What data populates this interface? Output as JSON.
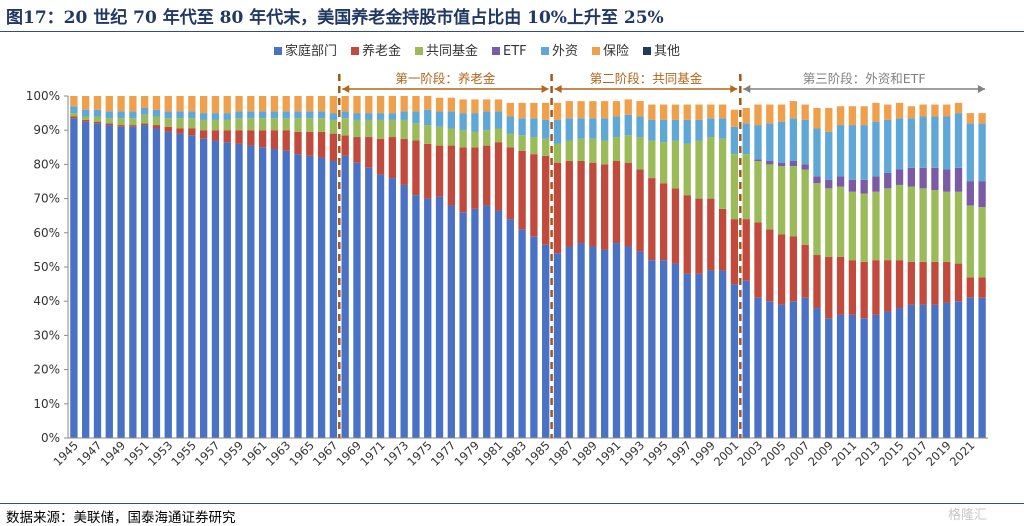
{
  "title": "图17：20 世纪 70 年代至 80 年代末，美国养老金持股市值占比由 10%上升至 25%",
  "source": "数据来源：美联储，国泰海通证券研究",
  "watermark": "格隆汇",
  "chart_data": {
    "type": "bar",
    "stacked": true,
    "percent": true,
    "ylim": [
      0,
      100
    ],
    "yticks": [
      "0%",
      "10%",
      "20%",
      "30%",
      "40%",
      "50%",
      "60%",
      "70%",
      "80%",
      "90%",
      "100%"
    ],
    "grid": false,
    "legend_position": "top",
    "x": [
      1945,
      1946,
      1947,
      1948,
      1949,
      1950,
      1951,
      1952,
      1953,
      1954,
      1955,
      1956,
      1957,
      1958,
      1959,
      1960,
      1961,
      1962,
      1963,
      1964,
      1965,
      1966,
      1967,
      1968,
      1969,
      1970,
      1971,
      1972,
      1973,
      1974,
      1975,
      1976,
      1977,
      1978,
      1979,
      1980,
      1981,
      1982,
      1983,
      1984,
      1985,
      1986,
      1987,
      1988,
      1989,
      1990,
      1991,
      1992,
      1993,
      1994,
      1995,
      1996,
      1997,
      1998,
      1999,
      2000,
      2001,
      2002,
      2003,
      2004,
      2005,
      2006,
      2007,
      2008,
      2009,
      2010,
      2011,
      2012,
      2013,
      2014,
      2015,
      2016,
      2017,
      2018,
      2019,
      2020,
      2021,
      2022
    ],
    "xtick_labels": [
      "1945",
      "1947",
      "1949",
      "1951",
      "1953",
      "1955",
      "1957",
      "1959",
      "1961",
      "1963",
      "1965",
      "1967",
      "1969",
      "1971",
      "1973",
      "1975",
      "1977",
      "1979",
      "1981",
      "1983",
      "1985",
      "1987",
      "1989",
      "1991",
      "1993",
      "1995",
      "1997",
      "1999",
      "2001",
      "2003",
      "2005",
      "2007",
      "2009",
      "2011",
      "2013",
      "2015",
      "2017",
      "2019",
      "2021"
    ],
    "series": [
      {
        "name": "家庭部门",
        "color": "#4a72c4",
        "values": [
          93.5,
          92.5,
          92,
          91.5,
          91,
          91,
          91.5,
          90.5,
          89.5,
          89,
          88.5,
          87.5,
          87,
          86.5,
          86,
          85.5,
          85,
          84.5,
          84,
          83,
          82.5,
          82,
          81,
          82.5,
          80.5,
          79,
          77,
          76,
          74,
          71,
          70,
          70.5,
          68,
          66,
          67,
          68,
          66.5,
          64,
          61,
          59,
          56.5,
          54,
          56,
          57,
          56,
          55,
          57,
          56,
          54.5,
          52,
          52,
          51,
          48,
          48,
          49,
          49,
          45,
          46,
          41,
          40,
          39,
          40,
          41,
          38,
          35,
          36,
          36,
          35,
          36,
          37,
          38,
          39,
          39,
          39,
          39.5,
          40,
          41,
          41
        ]
      },
      {
        "name": "养老金",
        "color": "#c24a3c",
        "values": [
          0.5,
          0.5,
          0.5,
          0.5,
          0.5,
          0.5,
          0.5,
          1,
          1.5,
          1.5,
          2,
          2.5,
          3,
          3.5,
          4,
          4.5,
          5,
          5.5,
          6,
          6.5,
          7,
          7.5,
          8,
          6,
          7.5,
          9,
          10.5,
          12,
          13.5,
          16,
          16,
          15,
          17.5,
          19,
          18,
          17.5,
          20,
          21,
          23,
          24,
          26,
          26.5,
          25,
          24,
          24.5,
          25,
          24,
          24.5,
          24,
          24,
          22.5,
          22,
          23,
          22,
          21,
          18,
          19,
          18,
          22,
          21,
          20.5,
          19,
          15.5,
          15.5,
          18,
          17,
          16,
          16.5,
          16,
          15,
          14,
          12.5,
          12.5,
          12.5,
          12,
          11,
          6,
          6
        ]
      },
      {
        "name": "共同基金",
        "color": "#9bbb59",
        "values": [
          1,
          1,
          1.5,
          1.5,
          2,
          2,
          2.5,
          2.5,
          2.5,
          3,
          3,
          3,
          3,
          3,
          3.5,
          3.5,
          3.5,
          3.5,
          3.5,
          4,
          4,
          4,
          4,
          5,
          5,
          5,
          5.5,
          5,
          5.5,
          5,
          5.5,
          5.5,
          5,
          5,
          4.5,
          4.5,
          4,
          4,
          4.5,
          5,
          5,
          5.5,
          6,
          6.5,
          7,
          7,
          7,
          8,
          9.5,
          11,
          12,
          14,
          15,
          17,
          18,
          20.5,
          19,
          19,
          18,
          19,
          20,
          20.5,
          22,
          21,
          20,
          20.5,
          20,
          20,
          20,
          21,
          22,
          22,
          21.5,
          21,
          20.5,
          21,
          21,
          20.5
        ]
      },
      {
        "name": "ETF",
        "color": "#7b5aa6",
        "values": [
          0,
          0,
          0,
          0,
          0,
          0,
          0,
          0,
          0,
          0,
          0,
          0,
          0,
          0,
          0,
          0,
          0,
          0,
          0,
          0,
          0,
          0,
          0,
          0,
          0,
          0,
          0,
          0,
          0,
          0,
          0,
          0,
          0,
          0,
          0,
          0,
          0,
          0,
          0,
          0,
          0,
          0,
          0,
          0,
          0,
          0,
          0,
          0,
          0,
          0,
          0,
          0,
          0,
          0,
          0,
          0,
          0,
          0,
          0.5,
          1,
          1,
          1.5,
          1.5,
          2,
          2.5,
          3,
          3.5,
          4,
          4.5,
          4.5,
          4.5,
          5.5,
          6,
          6.5,
          6.5,
          7,
          7,
          7.5
        ]
      },
      {
        "name": "外资",
        "color": "#5fa7d6",
        "values": [
          2,
          2,
          2,
          2,
          2,
          2,
          2,
          2,
          2,
          2,
          2,
          2,
          2,
          2,
          2,
          2,
          2,
          2,
          2,
          2,
          2,
          2,
          2,
          2,
          2,
          2,
          2,
          2,
          2.5,
          3.5,
          4.5,
          4.5,
          5,
          5,
          5.5,
          5.5,
          5,
          5,
          5,
          5.5,
          5.5,
          7,
          6.5,
          6,
          6,
          6.5,
          6,
          6,
          6,
          6,
          6.5,
          6,
          7,
          6,
          5.5,
          6,
          8,
          9,
          10,
          11,
          12,
          12.5,
          13,
          14,
          14,
          15,
          16,
          16,
          16,
          15.5,
          15,
          14.5,
          15,
          15,
          15.5,
          16,
          17,
          17
        ]
      },
      {
        "name": "保险",
        "color": "#f0a04b",
        "values": [
          3,
          4,
          4,
          4.5,
          4.5,
          4.5,
          3.5,
          4,
          4.5,
          4.5,
          4.5,
          5,
          5,
          5,
          4.5,
          4.5,
          4.5,
          4.5,
          4.5,
          4.5,
          4.5,
          4.5,
          5,
          4.5,
          5,
          5,
          5,
          5,
          4.5,
          4.5,
          4,
          4,
          4,
          4,
          4,
          3.5,
          3.5,
          4,
          4.5,
          4.5,
          5,
          5,
          5,
          5,
          5,
          5,
          4.5,
          4.5,
          4.5,
          4.5,
          4.5,
          4.5,
          4.5,
          4.5,
          4,
          4,
          5,
          4.5,
          6,
          5.5,
          5,
          5,
          4.5,
          6,
          7,
          5.5,
          5.5,
          5.5,
          5.5,
          4.5,
          4.5,
          3.5,
          3.5,
          3.5,
          3.5,
          3,
          3,
          3
        ]
      },
      {
        "name": "其他",
        "color": "#213a5c",
        "values": [
          0,
          0,
          0,
          0,
          0,
          0,
          0,
          0,
          0,
          0,
          0,
          0,
          0,
          0,
          0,
          0,
          0,
          0,
          0,
          0,
          0,
          0,
          0,
          0,
          0,
          0,
          0,
          0,
          0,
          0,
          0,
          0,
          0,
          0,
          0,
          0,
          0,
          0,
          0,
          0,
          0,
          0,
          0,
          0,
          0,
          0,
          0,
          0,
          0,
          0,
          0,
          0,
          0,
          0,
          0,
          0,
          0,
          0,
          0,
          0,
          0,
          0,
          0,
          0,
          0,
          0,
          0,
          0,
          0,
          0,
          0,
          0,
          0,
          0,
          0,
          0,
          0,
          0
        ]
      }
    ],
    "phases": [
      {
        "label": "第一阶段：养老金",
        "from": 1967,
        "to": 1985,
        "color": "#b3651a"
      },
      {
        "label": "第二阶段：共同基金",
        "from": 1985,
        "to": 2001,
        "color": "#b3651a"
      },
      {
        "label": "第三阶段：外资和ETF",
        "from": 2001,
        "to": 2022,
        "color": "#808080"
      }
    ],
    "phase_dividers": [
      1967,
      1985,
      2001
    ]
  }
}
